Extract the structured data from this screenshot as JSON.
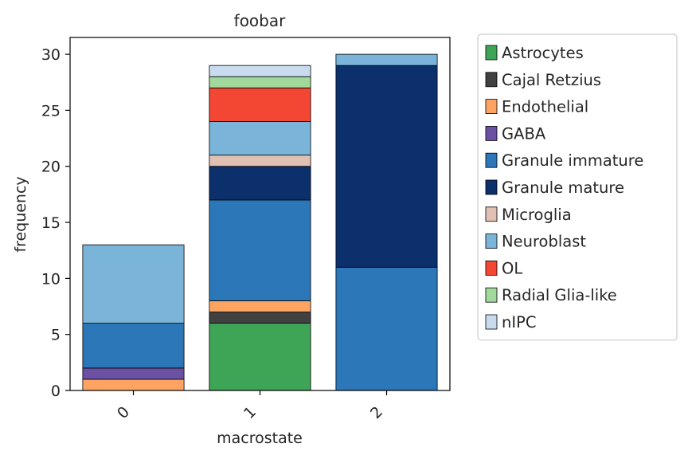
{
  "chart_data": {
    "type": "bar",
    "stacked": true,
    "title": "foobar",
    "xlabel": "macrostate",
    "ylabel": "frequency",
    "categories": [
      "0",
      "1",
      "2"
    ],
    "ylim": [
      0,
      31.5
    ],
    "yticks": [
      0,
      5,
      10,
      15,
      20,
      25,
      30
    ],
    "legend_position": "outside-right",
    "grid": false,
    "series": [
      {
        "name": "Astrocytes",
        "color": "#3ea456",
        "values": [
          0,
          6,
          0
        ]
      },
      {
        "name": "Cajal Retzius",
        "color": "#404040",
        "values": [
          0,
          1,
          0
        ]
      },
      {
        "name": "Endothelial",
        "color": "#fda463",
        "values": [
          1,
          1,
          0
        ]
      },
      {
        "name": "GABA",
        "color": "#6a51a3",
        "values": [
          1,
          0,
          0
        ]
      },
      {
        "name": "Granule immature",
        "color": "#2b77b8",
        "values": [
          4,
          9,
          11
        ]
      },
      {
        "name": "Granule mature",
        "color": "#0b306b",
        "values": [
          0,
          3,
          18
        ]
      },
      {
        "name": "Microglia",
        "color": "#e0c1b4",
        "values": [
          0,
          1,
          0
        ]
      },
      {
        "name": "Neuroblast",
        "color": "#7ab4d8",
        "values": [
          7,
          3,
          1
        ]
      },
      {
        "name": "OL",
        "color": "#f34733",
        "values": [
          0,
          3,
          0
        ]
      },
      {
        "name": "Radial Glia-like",
        "color": "#a0d99b",
        "values": [
          0,
          1,
          0
        ]
      },
      {
        "name": "nIPC",
        "color": "#c9dbef",
        "values": [
          0,
          1,
          0
        ]
      }
    ]
  }
}
